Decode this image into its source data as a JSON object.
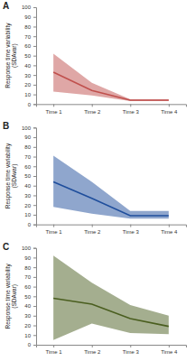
{
  "chart_data": [
    {
      "type": "line",
      "title": "A",
      "y_label": [
        "Response time variability",
        "(SDAvar)"
      ],
      "categories": [
        "Time 1",
        "Time 2",
        "Time 3",
        "Time 4"
      ],
      "values": [
        33,
        14,
        4,
        4
      ],
      "lower": [
        13,
        9,
        3,
        3
      ],
      "upper": [
        52,
        22,
        5,
        5
      ],
      "color": "#c0504d",
      "ylim": [
        0,
        100
      ],
      "yticks": [
        0,
        10,
        20,
        30,
        40,
        50,
        60,
        70,
        80,
        90,
        100
      ],
      "grid": false
    },
    {
      "type": "line",
      "title": "B",
      "y_label": [
        "Response time variability",
        "(SDAvar)"
      ],
      "categories": [
        "Time 1",
        "Time 2",
        "Time 3",
        "Time 4"
      ],
      "values": [
        44,
        27,
        9,
        9
      ],
      "lower": [
        18,
        11,
        6,
        6
      ],
      "upper": [
        71,
        44,
        14,
        14
      ],
      "color": "#1f4e9c",
      "ylim": [
        0,
        100
      ],
      "yticks": [
        0,
        10,
        20,
        30,
        40,
        50,
        60,
        70,
        80,
        90,
        100
      ],
      "grid": false
    },
    {
      "type": "line",
      "title": "C",
      "y_label": [
        "Response time variability",
        "(SDAvar)"
      ],
      "categories": [
        "Time 1",
        "Time 2",
        "Time 3",
        "Time 4"
      ],
      "values": [
        48,
        42,
        27,
        19
      ],
      "lower": [
        5,
        22,
        12,
        11
      ],
      "upper": [
        92,
        64,
        41,
        30
      ],
      "color": "#4a5e1f",
      "ylim": [
        0,
        100
      ],
      "yticks": [
        0,
        10,
        20,
        30,
        40,
        50,
        60,
        70,
        80,
        90,
        100
      ],
      "grid": false
    }
  ]
}
